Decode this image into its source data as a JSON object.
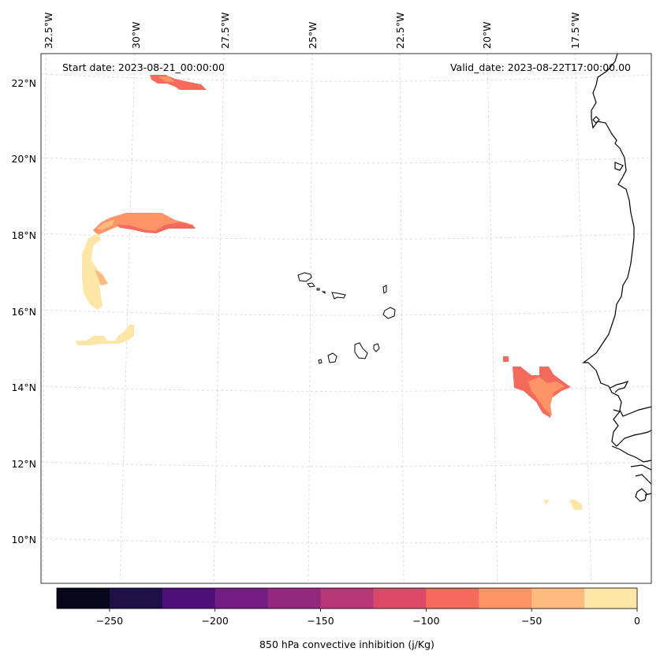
{
  "map": {
    "start_label": "Start date: 2023-08-21_00:00:00",
    "valid_label": "Valid_date: 2023-08-22T17:00:00.00",
    "lon_labels": [
      "32.5°W",
      "30°W",
      "27.5°W",
      "25°W",
      "22.5°W",
      "20°W",
      "17.5°W"
    ],
    "lat_labels": [
      "22°N",
      "20°N",
      "18°N",
      "16°N",
      "14°N",
      "12°N",
      "10°N"
    ],
    "gridlines": "dashed light gray",
    "coastline_color": "#000000"
  },
  "colorbar": {
    "label": "850 hPa convective inhibition (j/Kg)",
    "tick_labels": [
      "−250",
      "−200",
      "−150",
      "−100",
      "−50",
      "0"
    ],
    "levels": [
      -275,
      -250,
      -225,
      -200,
      -175,
      -150,
      -125,
      -100,
      -75,
      -50,
      -25,
      0
    ],
    "colors": [
      "#07061b",
      "#1f1147",
      "#4c1078",
      "#731d83",
      "#93297f",
      "#b73779",
      "#dc4868",
      "#f56a5c",
      "#fd9366",
      "#feba80",
      "#fde6a8"
    ]
  },
  "fields": [
    {
      "region": "north near 22N 29-28W",
      "cin_class": "-100 to -75",
      "color": "#f56a5c"
    },
    {
      "region": "arc near 18N 31-28W",
      "cin_class": "-75 to -25",
      "color": "#fd9366"
    },
    {
      "region": "band near 16-17N 31.5W",
      "cin_class": "-25 to 0",
      "color": "#fde6a8"
    },
    {
      "region": "south of Cape Verde 14N 19.5-18.5W",
      "cin_class": "-100 to -50",
      "color": "#f56a5c"
    },
    {
      "region": "near 11N 18W",
      "cin_class": "-25 to 0",
      "color": "#fde6a8"
    }
  ]
}
